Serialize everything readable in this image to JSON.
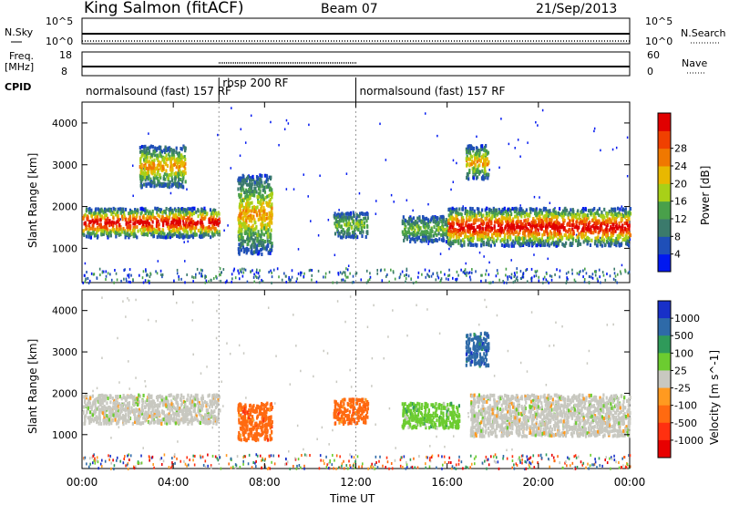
{
  "header": {
    "station": "King Salmon (fitACF)",
    "beam": "Beam 07",
    "date": "21/Sep/2013"
  },
  "status_panels": {
    "nsky_label": "N.Sky",
    "nsky_top": "10^5",
    "nsky_bottom": "10^0",
    "nsearch_label": "N.Search",
    "nsearch_top": "10^5",
    "nsearch_bottom": "10^0",
    "freq_label": "Freq.",
    "freq_unit": "[MHz]",
    "freq_top": "18",
    "freq_bottom": "8",
    "nave_label": "Nave",
    "nave_top": "60",
    "nave_bottom": "0",
    "cpid_label": "CPID"
  },
  "cpid_segments": [
    {
      "label": "normalsound (fast) 157 RF",
      "start_hour": 0,
      "end_hour": 6
    },
    {
      "label": "rbsp 200 RF",
      "start_hour": 6,
      "end_hour": 12
    },
    {
      "label": "normalsound (fast) 157 RF",
      "start_hour": 12,
      "end_hour": 24
    }
  ],
  "chart_data": [
    {
      "type": "heatmap",
      "parameter": "power",
      "ylabel": "Slant Range [km]",
      "xlim": [
        0,
        24
      ],
      "ylim": [
        180,
        4500
      ],
      "yticks": [
        1000,
        2000,
        3000,
        4000
      ],
      "colorbar": {
        "label": "Power [dB]",
        "ticks": [
          "4",
          "8",
          "12",
          "16",
          "20",
          "24",
          "28"
        ],
        "colors": [
          "#0018f0",
          "#1f4fb8",
          "#3b7a6c",
          "#49a04a",
          "#a8d018",
          "#e8b800",
          "#f07800",
          "#f04000",
          "#e00000"
        ]
      },
      "echo_regions": [
        {
          "start_hour": 0.0,
          "end_hour": 6.0,
          "range_km": [
            1300,
            2000
          ],
          "level": "high"
        },
        {
          "start_hour": 2.5,
          "end_hour": 4.5,
          "range_km": [
            2500,
            3500
          ],
          "level": "medium"
        },
        {
          "start_hour": 6.8,
          "end_hour": 8.3,
          "range_km": [
            900,
            2800
          ],
          "level": "medium"
        },
        {
          "start_hour": 11.0,
          "end_hour": 12.5,
          "range_km": [
            1300,
            1900
          ],
          "level": "low"
        },
        {
          "start_hour": 14.0,
          "end_hour": 16.0,
          "range_km": [
            1200,
            1800
          ],
          "level": "low"
        },
        {
          "start_hour": 16.0,
          "end_hour": 24.0,
          "range_km": [
            1100,
            2000
          ],
          "level": "high"
        },
        {
          "start_hour": 16.8,
          "end_hour": 17.8,
          "range_km": [
            2700,
            3500
          ],
          "level": "medium"
        }
      ]
    },
    {
      "type": "heatmap",
      "parameter": "velocity",
      "ylabel": "Slant Range [km]",
      "xlabel": "Time UT",
      "xlim": [
        0,
        24
      ],
      "ylim": [
        180,
        4500
      ],
      "xticks": [
        "00:00",
        "04:00",
        "08:00",
        "12:00",
        "16:00",
        "20:00",
        "00:00"
      ],
      "yticks": [
        1000,
        2000,
        3000,
        4000
      ],
      "colorbar": {
        "label": "Velocity [m s^-1]",
        "ticks": [
          "1000",
          "500",
          "100",
          "25",
          "-25",
          "-100",
          "-500",
          "-1000"
        ],
        "colors": [
          "#1830c8",
          "#2e6aa8",
          "#2f9a5a",
          "#6ccc30",
          "#c8c8c0",
          "#ff9a20",
          "#ff6a10",
          "#ff3010",
          "#e80000"
        ]
      },
      "echo_regions": [
        {
          "start_hour": 0.0,
          "end_hour": 6.0,
          "range_km": [
            1300,
            2000
          ],
          "velocity": "near-zero"
        },
        {
          "start_hour": 6.8,
          "end_hour": 8.3,
          "range_km": [
            900,
            1800
          ],
          "velocity": "-100"
        },
        {
          "start_hour": 11.0,
          "end_hour": 12.5,
          "range_km": [
            1300,
            1900
          ],
          "velocity": "-100"
        },
        {
          "start_hour": 14.0,
          "end_hour": 16.5,
          "range_km": [
            1200,
            1800
          ],
          "velocity": "100"
        },
        {
          "start_hour": 16.8,
          "end_hour": 17.8,
          "range_km": [
            2700,
            3500
          ],
          "velocity": "500"
        },
        {
          "start_hour": 17.0,
          "end_hour": 24.0,
          "range_km": [
            1000,
            2000
          ],
          "velocity": "near-zero"
        }
      ]
    }
  ]
}
